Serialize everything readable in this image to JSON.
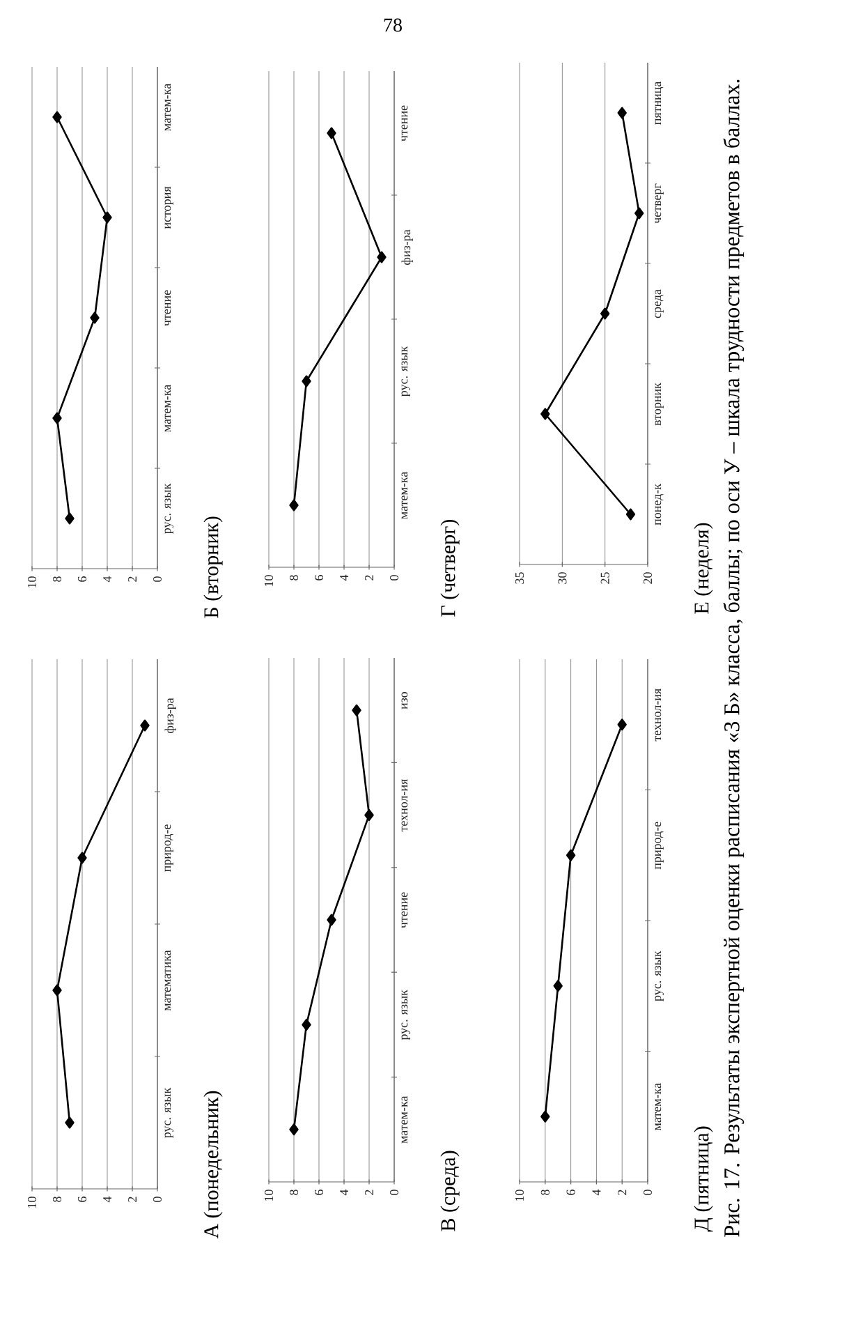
{
  "chart_data": [
    {
      "type": "line",
      "orientation": "horizontal",
      "categories": [
        "физ-ра",
        "природ-е",
        "математика",
        "рус. язык"
      ],
      "values": [
        1,
        6,
        8,
        7
      ],
      "color": "#000000",
      "xlim": [
        10,
        0
      ],
      "xticks": [
        0,
        2,
        4,
        6,
        8,
        10
      ],
      "grid": "x",
      "marker": "diamond",
      "line_style": "solid",
      "annotations": [
        "А (понедельник)"
      ]
    },
    {
      "type": "line",
      "orientation": "horizontal",
      "categories": [
        "матем-ка",
        "история",
        "чтение",
        "матем-ка",
        "рус. язык"
      ],
      "values": [
        8,
        4,
        5,
        8,
        7
      ],
      "color": "#000000",
      "xlim": [
        10,
        0
      ],
      "xticks": [
        0,
        2,
        4,
        6,
        8,
        10
      ],
      "grid": "x",
      "marker": "diamond",
      "line_style": "solid",
      "annotations": [
        "Б (вторник)"
      ]
    },
    {
      "type": "line",
      "orientation": "horizontal",
      "categories": [
        "изо",
        "технол-ия",
        "чтение",
        "рус. язык",
        "матем-ка"
      ],
      "values": [
        3,
        2,
        5,
        7,
        8
      ],
      "color": "#000000",
      "xlim": [
        10,
        0
      ],
      "xticks": [
        0,
        2,
        4,
        6,
        8,
        10
      ],
      "grid": "x",
      "marker": "diamond",
      "line_style": "solid",
      "annotations": [
        "В (среда)"
      ]
    },
    {
      "type": "line",
      "orientation": "horizontal",
      "categories": [
        "чтение",
        "физ-ра",
        "рус. язык",
        "матем-ка"
      ],
      "values": [
        5,
        1,
        7,
        8
      ],
      "color": "#000000",
      "xlim": [
        10,
        0
      ],
      "xticks": [
        0,
        2,
        4,
        6,
        8,
        10
      ],
      "grid": "x",
      "marker": "diamond",
      "line_style": "solid",
      "annotations": [
        "Г (четверг)",
        "78"
      ]
    },
    {
      "type": "line",
      "orientation": "horizontal",
      "categories": [
        "технол-ия",
        "природ-е",
        "рус. язык",
        "матем-ка"
      ],
      "values": [
        2,
        6,
        7,
        8
      ],
      "color": "#000000",
      "xlim": [
        10,
        0
      ],
      "xticks": [
        0,
        2,
        4,
        6,
        8,
        10
      ],
      "grid": "x",
      "marker": "diamond",
      "line_style": "solid",
      "annotations": [
        "Д (пятница)",
        "Рис. 17. Результаты экспертной оценки расписания «3 Б» класса, баллы; по оси У – шкала трудности предметов в баллах."
      ]
    },
    {
      "type": "line",
      "orientation": "horizontal",
      "categories": [
        "пятница",
        "четверг",
        "среда",
        "вторник",
        "понед-к"
      ],
      "values": [
        23,
        21,
        25,
        32,
        22
      ],
      "color": "#000000",
      "xlim": [
        35,
        20
      ],
      "xticks": [
        20,
        25,
        30,
        35
      ],
      "grid": "x",
      "marker": "diamond",
      "line_style": "solid",
      "annotations": [
        "Е (неделя)"
      ]
    }
  ]
}
